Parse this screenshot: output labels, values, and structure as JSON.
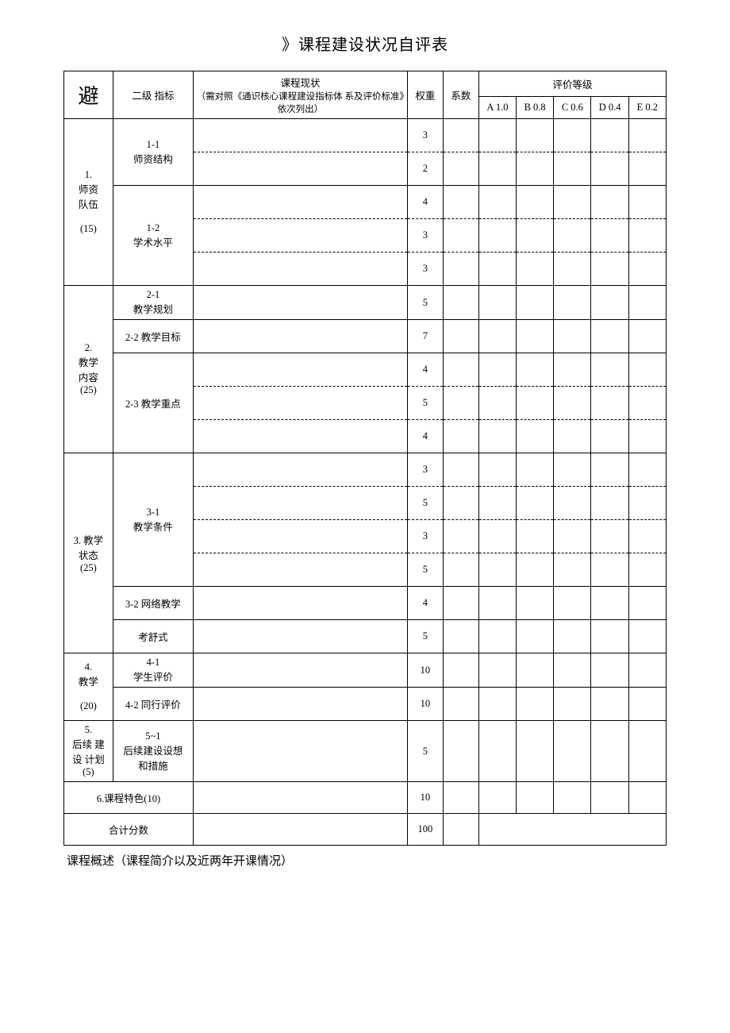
{
  "title": "》课程建设状况自评表",
  "header": {
    "level1": "避",
    "level2": "二级 指标",
    "status_line1": "课程现状",
    "status_line2": "（需对照《通识核心课程建设指标体 系及评价标准》依次列出）",
    "weight": "权重",
    "coef": "系数",
    "grade_title": "评价等级",
    "grades": [
      "A 1.0",
      "B 0.8",
      "C 0.6",
      "D 0.4",
      "E 0.2"
    ]
  },
  "sections": [
    {
      "l1": "1.\n师资\n队伍\n\n(15)",
      "subs": [
        {
          "l2": "1-1\n师资结构",
          "rows": [
            {
              "w": "3"
            },
            {
              "w": "2"
            }
          ]
        },
        {
          "l2": "1-2\n学术水平",
          "rows": [
            {
              "w": "4"
            },
            {
              "w": "3"
            },
            {
              "w": "3"
            }
          ]
        }
      ]
    },
    {
      "l1": "2.\n教学\n内容\n(25)",
      "subs": [
        {
          "l2": "2-1\n教学规划",
          "rows": [
            {
              "w": "5"
            }
          ]
        },
        {
          "l2": "2-2 教学目标",
          "rows": [
            {
              "w": "7"
            }
          ]
        },
        {
          "l2": "2-3 教学重点",
          "rows": [
            {
              "w": "4"
            },
            {
              "w": "5"
            },
            {
              "w": "4"
            }
          ]
        }
      ]
    },
    {
      "l1": "3. 教学\n状态\n(25)",
      "subs": [
        {
          "l2": "3-1\n教学条件",
          "rows": [
            {
              "w": "3"
            },
            {
              "w": "5"
            },
            {
              "w": "3"
            },
            {
              "w": "5"
            }
          ]
        },
        {
          "l2": "3-2 网络教学",
          "rows": [
            {
              "w": "4"
            }
          ]
        },
        {
          "l2": "考舒式",
          "rows": [
            {
              "w": "5"
            }
          ]
        }
      ]
    },
    {
      "l1": "4.\n教学\n\n(20)",
      "subs": [
        {
          "l2": "4-1\n学生评价",
          "rows": [
            {
              "w": "10"
            }
          ]
        },
        {
          "l2": "4-2 同行评价",
          "rows": [
            {
              "w": "10"
            }
          ]
        }
      ]
    },
    {
      "l1": "5.\n后续 建\n设 计划\n(5)",
      "subs": [
        {
          "l2": "5~1\n后续建设设想\n和措施",
          "rows": [
            {
              "w": "5"
            }
          ]
        }
      ]
    }
  ],
  "special_row": {
    "label": "6.课程特色(10)",
    "w": "10"
  },
  "total_row": {
    "label": "合计分数",
    "w": "100"
  },
  "footer": "课程概述（课程简介以及近两年开课情况）"
}
